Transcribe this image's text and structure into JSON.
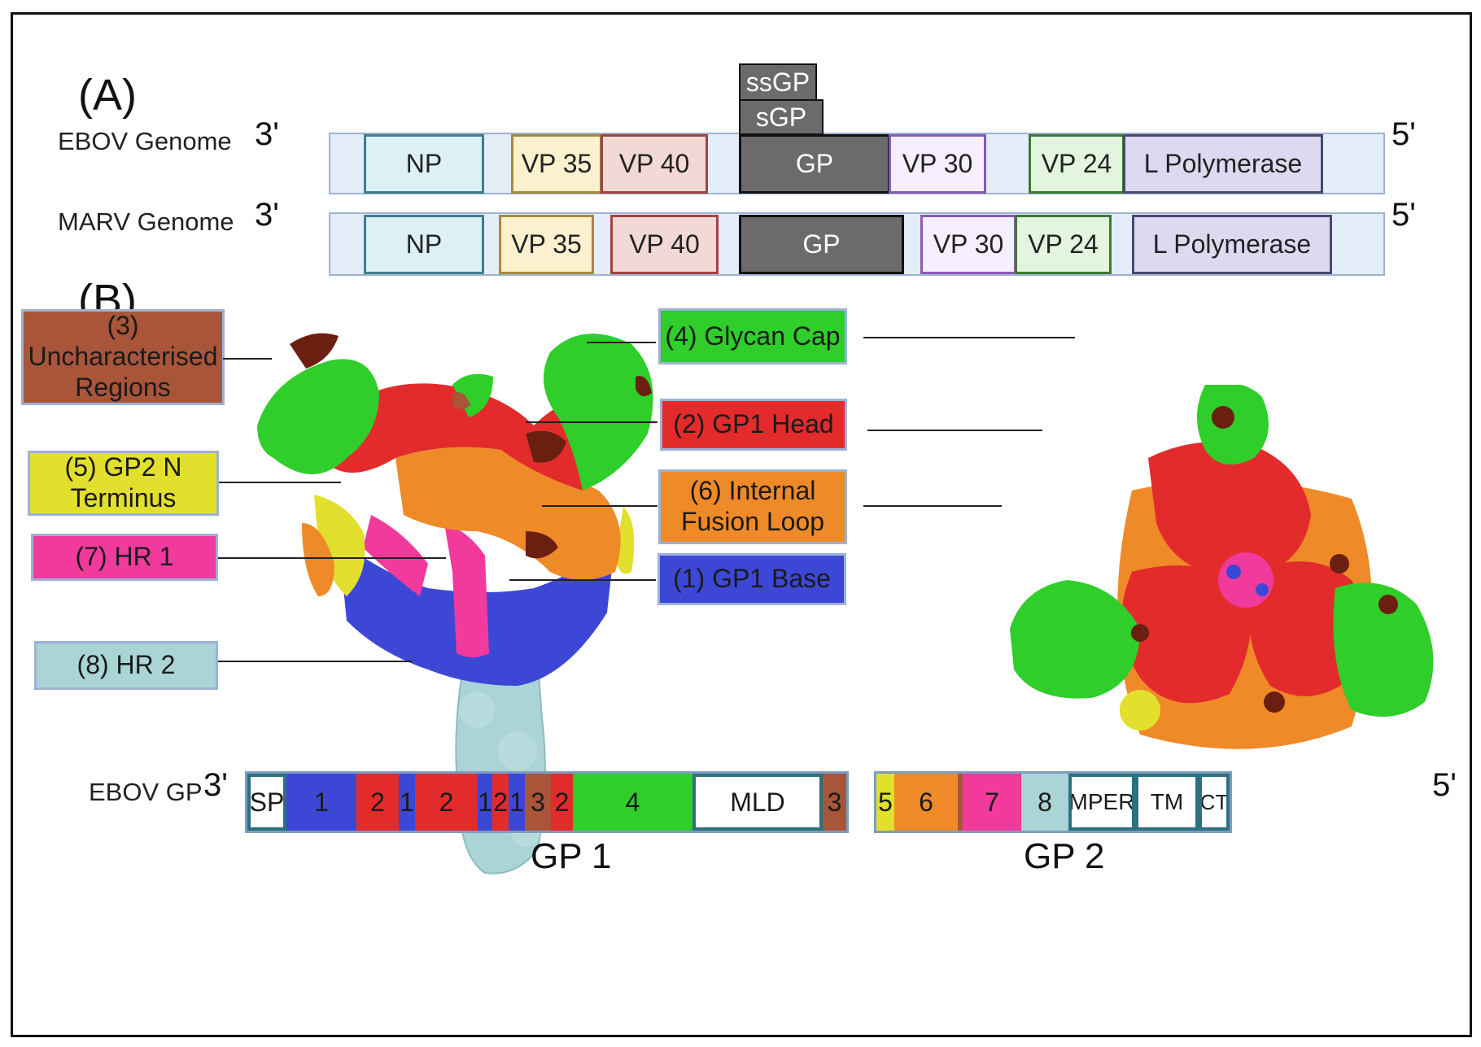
{
  "panels": {
    "a_label": "(A)",
    "b_label": "(B)"
  },
  "colors": {
    "gp1_base": "#3d47d6",
    "gp1_head": "#e32b2b",
    "uncharacterised": "#a8553a",
    "glycan_cap": "#2fce2a",
    "gp2_n_terminus": "#e2df2d",
    "internal_fusion_loop": "#ef8a29",
    "hr1": "#f13a9c",
    "hr2": "#abd4d6",
    "dark_region": "#6b1f10"
  },
  "ebov_genome": {
    "label": "EBOV Genome",
    "three_prime": "3'",
    "five_prime": "5'",
    "genes": [
      "NP",
      "VP 35",
      "VP 40",
      "GP",
      "VP 30",
      "VP 24",
      "L Polymerase"
    ],
    "ssgp": "ssGP",
    "sgp": "sGP"
  },
  "marv_genome": {
    "label": "MARV Genome",
    "three_prime": "3'",
    "five_prime": "5'",
    "genes": [
      "NP",
      "VP 35",
      "VP 40",
      "GP",
      "VP 30",
      "VP 24",
      "L Polymerase"
    ]
  },
  "legend": {
    "uncharacterised": "(3)\nUncharacterised\nRegions",
    "gp2_n_terminus": "(5) GP2 N\nTerminus",
    "hr1": "(7) HR 1",
    "hr2": "(8) HR 2",
    "glycan_cap": "(4) Glycan Cap",
    "gp1_head": "(2) GP1 Head",
    "internal_fusion_loop": "(6) Internal\nFusion  Loop",
    "gp1_base": "(1) GP1 Base"
  },
  "ebov_gp": {
    "label": "EBOV GP",
    "three_prime": "3'",
    "five_prime": "5'",
    "gp1_label": "GP 1",
    "gp2_label": "GP 2",
    "gp1_segments": [
      "SP",
      "1",
      "2",
      "1",
      "2",
      "1",
      "2",
      "1",
      "3",
      "2",
      "4",
      "MLD",
      "3"
    ],
    "gp2_segments": [
      "5",
      "6",
      "7",
      "8",
      "MPER",
      "TM",
      "CT"
    ]
  }
}
